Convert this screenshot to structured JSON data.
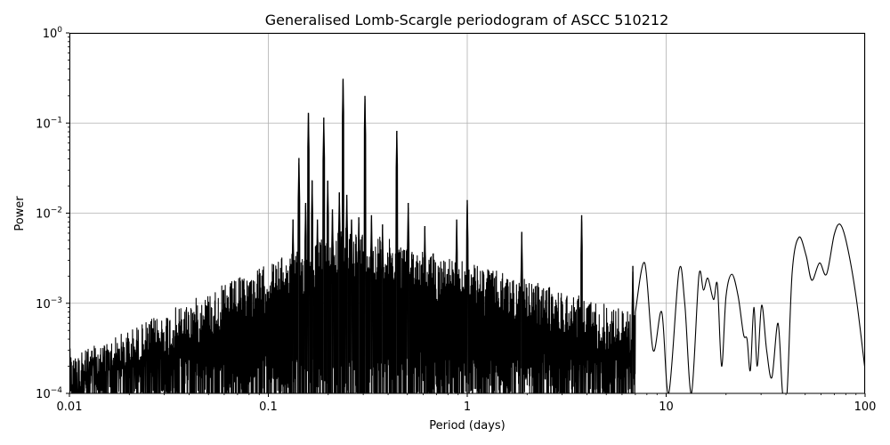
{
  "chart_data": {
    "type": "line",
    "title": "Generalised Lomb-Scargle periodogram of ASCC 510212",
    "xlabel": "Period (days)",
    "ylabel": "Power",
    "xscale": "log",
    "yscale": "log",
    "xlim": [
      0.01,
      100
    ],
    "ylim": [
      0.0001,
      1
    ],
    "grid": true,
    "x_ticks": [
      {
        "value": 0.01,
        "label": "0.01"
      },
      {
        "value": 0.1,
        "label": "0.1"
      },
      {
        "value": 1,
        "label": "1"
      },
      {
        "value": 10,
        "label": "10"
      },
      {
        "value": 100,
        "label": "100"
      }
    ],
    "y_ticks": [
      {
        "value": 0.0001,
        "base": "10",
        "exp": "−4"
      },
      {
        "value": 0.001,
        "base": "10",
        "exp": "−3"
      },
      {
        "value": 0.01,
        "base": "10",
        "exp": "−2"
      },
      {
        "value": 0.1,
        "base": "10",
        "exp": "−1"
      },
      {
        "value": 1,
        "base": "10",
        "exp": "0"
      }
    ],
    "line_color": "#000000",
    "series": [
      {
        "peaks": [
          {
            "period": 0.133,
            "power": 0.0085
          },
          {
            "period": 0.1425,
            "power": 0.041
          },
          {
            "period": 0.154,
            "power": 0.013
          },
          {
            "period": 0.159,
            "power": 0.13
          },
          {
            "period": 0.166,
            "power": 0.023
          },
          {
            "period": 0.1765,
            "power": 0.0085
          },
          {
            "period": 0.19,
            "power": 0.115
          },
          {
            "period": 0.199,
            "power": 0.023
          },
          {
            "period": 0.21,
            "power": 0.011
          },
          {
            "period": 0.2275,
            "power": 0.017
          },
          {
            "period": 0.2375,
            "power": 0.31
          },
          {
            "period": 0.248,
            "power": 0.016
          },
          {
            "period": 0.262,
            "power": 0.0085
          },
          {
            "period": 0.285,
            "power": 0.009
          },
          {
            "period": 0.306,
            "power": 0.2
          },
          {
            "period": 0.33,
            "power": 0.0095
          },
          {
            "period": 0.375,
            "power": 0.0075
          },
          {
            "period": 0.4425,
            "power": 0.082
          },
          {
            "period": 0.505,
            "power": 0.013
          },
          {
            "period": 0.612,
            "power": 0.0072
          },
          {
            "period": 0.885,
            "power": 0.0085
          },
          {
            "period": 1.0,
            "power": 0.014
          },
          {
            "period": 1.88,
            "power": 0.0062
          },
          {
            "period": 3.76,
            "power": 0.0095
          },
          {
            "period": 6.8,
            "power": 0.0026
          }
        ],
        "smooth": [
          {
            "period": 7.0,
            "power": 0.0008
          },
          {
            "period": 7.8,
            "power": 0.0028
          },
          {
            "period": 8.6,
            "power": 0.0003
          },
          {
            "period": 9.5,
            "power": 0.0008
          },
          {
            "period": 10.3,
            "power": 0.0001
          },
          {
            "period": 11.6,
            "power": 0.0023
          },
          {
            "period": 12.4,
            "power": 0.001
          },
          {
            "period": 13.4,
            "power": 0.0001
          },
          {
            "period": 14.6,
            "power": 0.002
          },
          {
            "period": 15.4,
            "power": 0.0014
          },
          {
            "period": 16.2,
            "power": 0.0019
          },
          {
            "period": 17.3,
            "power": 0.0011
          },
          {
            "period": 18.1,
            "power": 0.0016
          },
          {
            "period": 19.0,
            "power": 0.0002
          },
          {
            "period": 20.0,
            "power": 0.0012
          },
          {
            "period": 21.4,
            "power": 0.0021
          },
          {
            "period": 23.0,
            "power": 0.0012
          },
          {
            "period": 24.5,
            "power": 0.00045
          },
          {
            "period": 25.5,
            "power": 0.0004
          },
          {
            "period": 26.5,
            "power": 0.00018
          },
          {
            "period": 27.6,
            "power": 0.0009
          },
          {
            "period": 28.7,
            "power": 0.0002
          },
          {
            "period": 30.2,
            "power": 0.00095
          },
          {
            "period": 32.0,
            "power": 0.0003
          },
          {
            "period": 34.0,
            "power": 0.00015
          },
          {
            "period": 36.5,
            "power": 0.0006
          },
          {
            "period": 38.5,
            "power": 0.0001
          },
          {
            "period": 40.5,
            "power": 0.0001
          },
          {
            "period": 43.0,
            "power": 0.0022
          },
          {
            "period": 46.5,
            "power": 0.0054
          },
          {
            "period": 50.5,
            "power": 0.0034
          },
          {
            "period": 54.0,
            "power": 0.0018
          },
          {
            "period": 59.0,
            "power": 0.0028
          },
          {
            "period": 64.0,
            "power": 0.0021
          },
          {
            "period": 70.0,
            "power": 0.0058
          },
          {
            "period": 75.0,
            "power": 0.0075
          },
          {
            "period": 81.0,
            "power": 0.0045
          },
          {
            "period": 90.0,
            "power": 0.0012
          },
          {
            "period": 100.0,
            "power": 0.00018
          }
        ]
      }
    ]
  }
}
